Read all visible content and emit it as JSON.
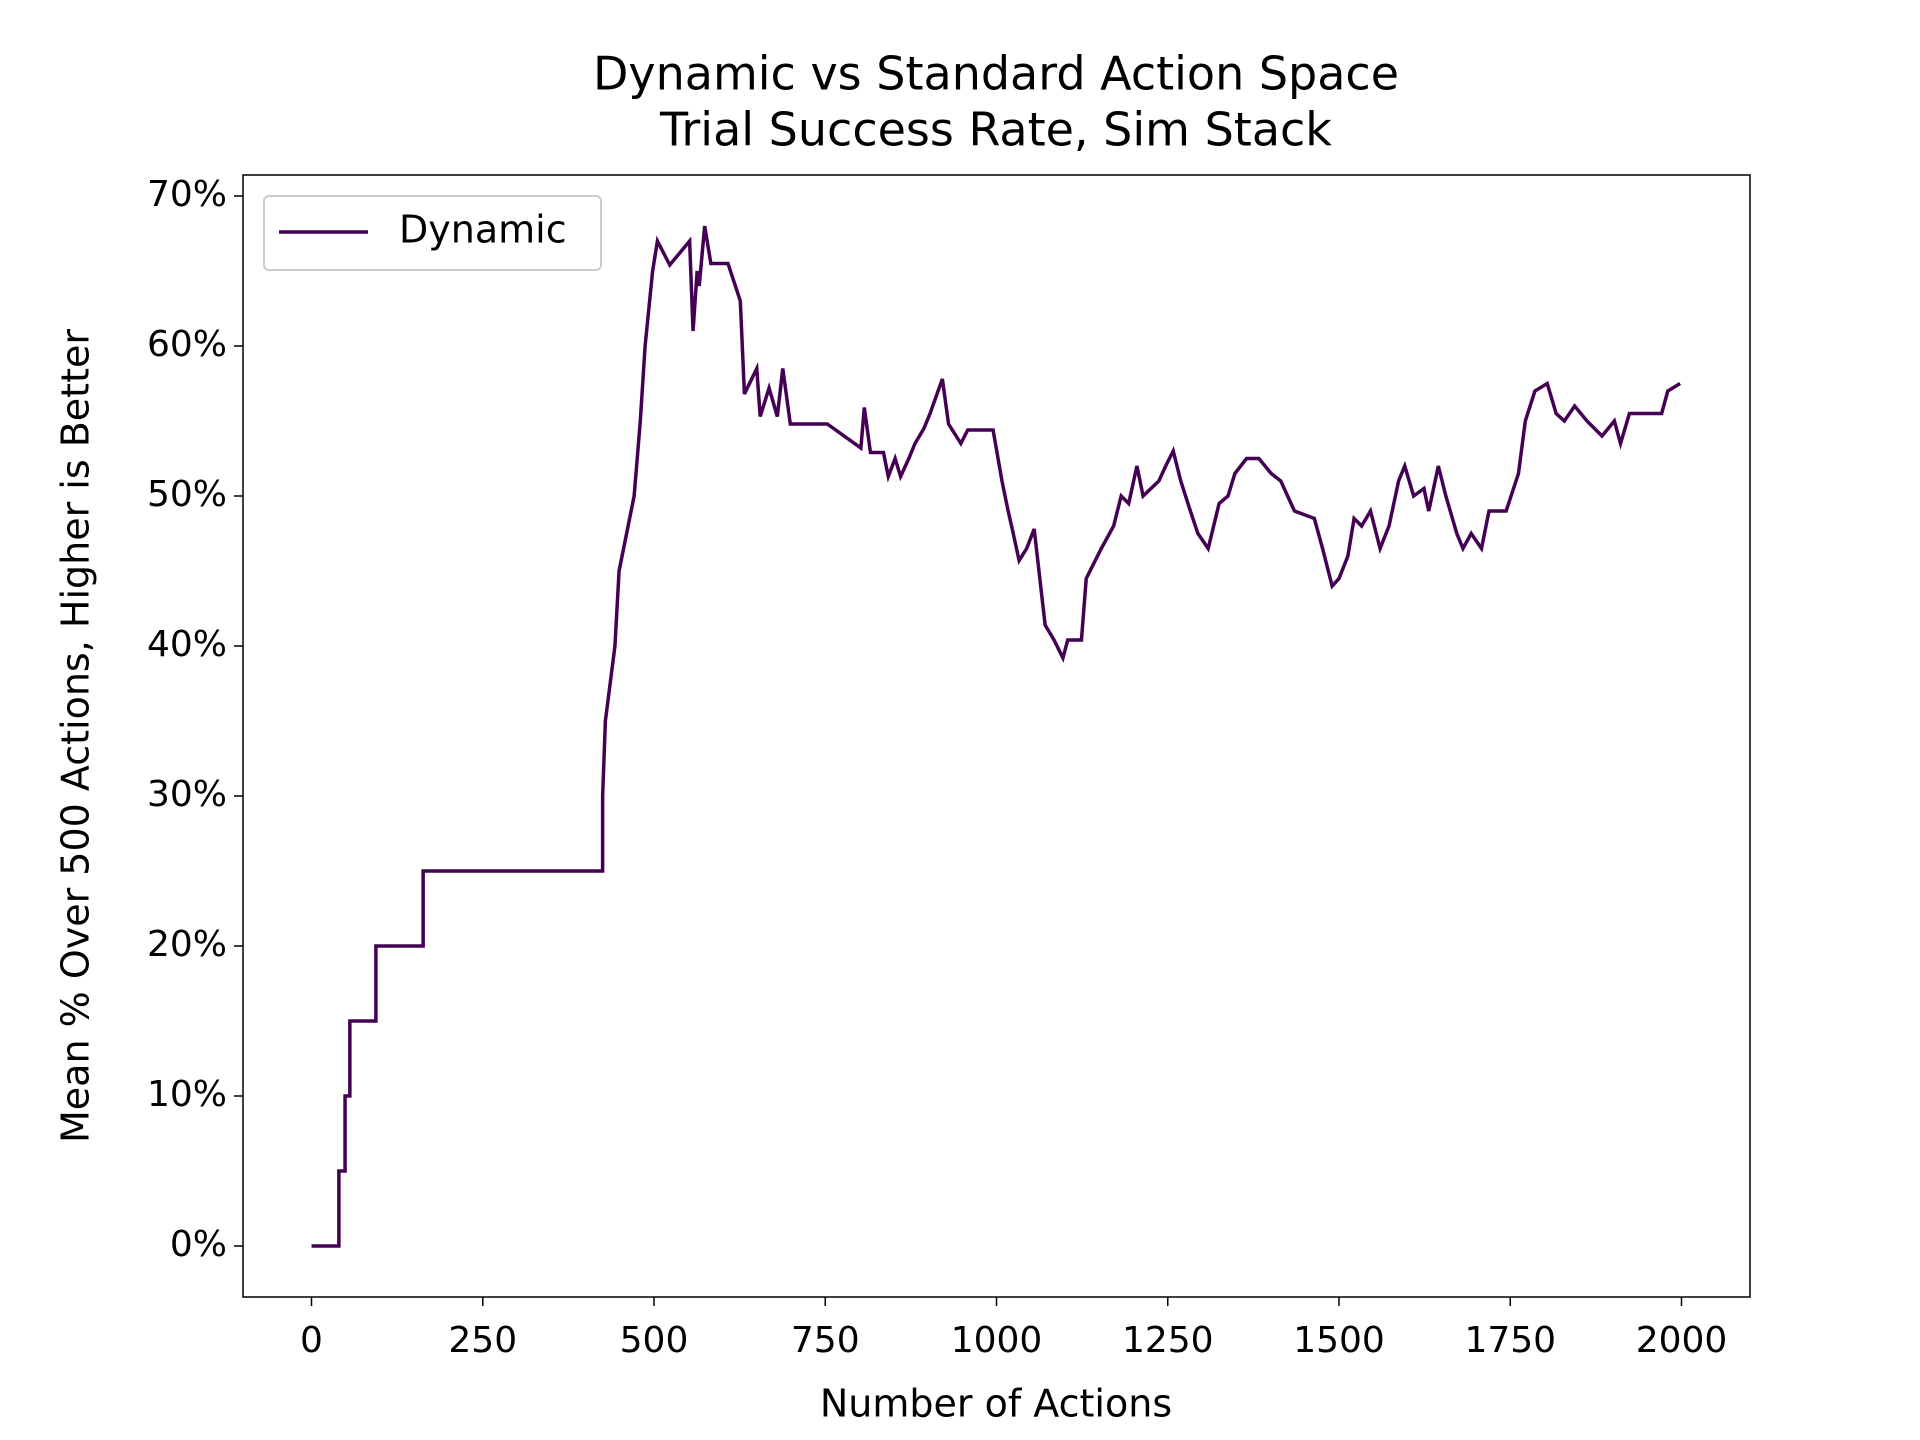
{
  "chart_data": {
    "type": "line",
    "title": "Dynamic vs Standard Action Space",
    "subtitle": "Trial Success Rate, Sim Stack",
    "xlabel": "Number of Actions",
    "ylabel": "Mean % Over 500 Actions, Higher is Better",
    "xlim": [
      -100,
      2100
    ],
    "ylim": [
      -3.4,
      71.4
    ],
    "xticks": [
      0,
      250,
      500,
      750,
      1000,
      1250,
      1500,
      1750,
      2000
    ],
    "yticks": [
      {
        "value": 0,
        "label": "0%"
      },
      {
        "value": 10,
        "label": "10%"
      },
      {
        "value": 20,
        "label": "20%"
      },
      {
        "value": 30,
        "label": "30%"
      },
      {
        "value": 40,
        "label": "40%"
      },
      {
        "value": 50,
        "label": "50%"
      },
      {
        "value": 60,
        "label": "60%"
      },
      {
        "value": 70,
        "label": "70%"
      }
    ],
    "legend": "upper left",
    "series": [
      {
        "name": "Dynamic",
        "color": "#440154",
        "x": [
          0,
          40,
          40,
          49,
          49,
          56,
          56,
          94,
          94,
          163,
          163,
          425,
          425,
          429,
          443,
          449,
          471,
          480,
          487,
          498,
          505,
          523,
          552,
          557,
          563,
          566,
          574,
          583,
          608,
          626,
          632,
          650,
          655,
          668,
          680,
          688,
          699,
          753,
          802,
          807,
          816,
          835,
          842,
          852,
          860,
          872,
          881,
          894,
          903,
          921,
          930,
          948,
          958,
          995,
          1008,
          1017,
          1023,
          1033,
          1044,
          1055,
          1062,
          1071,
          1084,
          1097,
          1104,
          1124,
          1131,
          1153,
          1171,
          1182,
          1193,
          1205,
          1214,
          1237,
          1247,
          1258,
          1269,
          1283,
          1294,
          1309,
          1325,
          1338,
          1348,
          1365,
          1383,
          1401,
          1415,
          1435,
          1464,
          1476,
          1490,
          1500,
          1513,
          1522,
          1533,
          1546,
          1560,
          1573,
          1587,
          1596,
          1609,
          1624,
          1631,
          1645,
          1656,
          1672,
          1681,
          1693,
          1708,
          1719,
          1744,
          1762,
          1772,
          1786,
          1804,
          1817,
          1829,
          1844,
          1862,
          1884,
          1902,
          1911,
          1924,
          1944,
          1971,
          1980,
          1998
        ],
        "values": [
          0,
          0,
          5,
          5,
          10,
          10,
          15,
          15,
          20,
          20,
          25,
          25,
          30,
          35,
          40,
          45,
          50,
          55,
          60,
          65,
          67,
          65.4,
          67,
          61,
          65,
          64,
          68,
          65.5,
          65.5,
          63,
          56.8,
          58.5,
          55.3,
          57.2,
          55.3,
          58.5,
          54.8,
          54.8,
          53.2,
          55.9,
          52.9,
          52.9,
          51.3,
          52.5,
          51.3,
          52.5,
          53.5,
          54.5,
          55.5,
          57.8,
          54.8,
          53.5,
          54.4,
          54.4,
          51,
          49,
          47.8,
          45.7,
          46.5,
          47.8,
          45,
          41.4,
          40.4,
          39.2,
          40.4,
          40.4,
          44.5,
          46.5,
          48,
          50,
          49.5,
          52,
          50,
          51,
          52,
          53,
          51,
          49,
          47.5,
          46.5,
          49.5,
          50,
          51.5,
          52.5,
          52.5,
          51.5,
          51,
          49,
          48.5,
          46.5,
          44,
          44.5,
          46,
          48.5,
          48,
          49,
          46.5,
          48,
          51,
          52,
          50,
          50.5,
          49,
          52,
          50,
          47.5,
          46.5,
          47.5,
          46.5,
          49,
          49,
          51.5,
          55,
          57,
          57.5,
          55.5,
          55,
          56,
          55,
          54,
          55,
          53.5,
          55.5,
          55.5,
          55.5,
          57,
          57.5
        ]
      }
    ]
  }
}
